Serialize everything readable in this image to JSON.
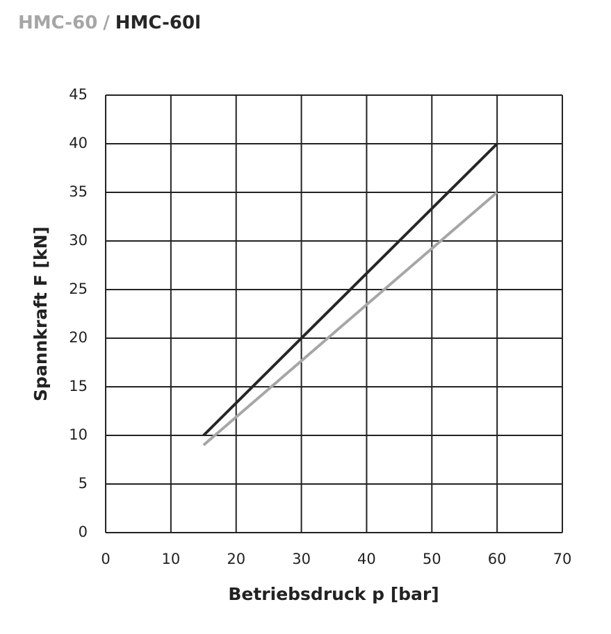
{
  "chart_data": {
    "type": "line",
    "legend_separator": "/",
    "x_label": "Betriebsdruck p [bar]",
    "y_label": "Spannkraft F [kN]",
    "x": [
      15,
      60
    ],
    "series": [
      {
        "name": "HMC-60",
        "color": "#a6a6a6",
        "values": [
          9,
          35
        ]
      },
      {
        "name": "HMC-60l",
        "color": "#262626",
        "values": [
          10,
          40
        ]
      }
    ],
    "xlim": [
      0,
      70
    ],
    "xticks": [
      0,
      10,
      20,
      30,
      40,
      50,
      60,
      70
    ],
    "ylim": [
      0,
      45
    ],
    "yticks": [
      0,
      5,
      10,
      15,
      20,
      25,
      30,
      35,
      40,
      45
    ],
    "grid": true
  }
}
